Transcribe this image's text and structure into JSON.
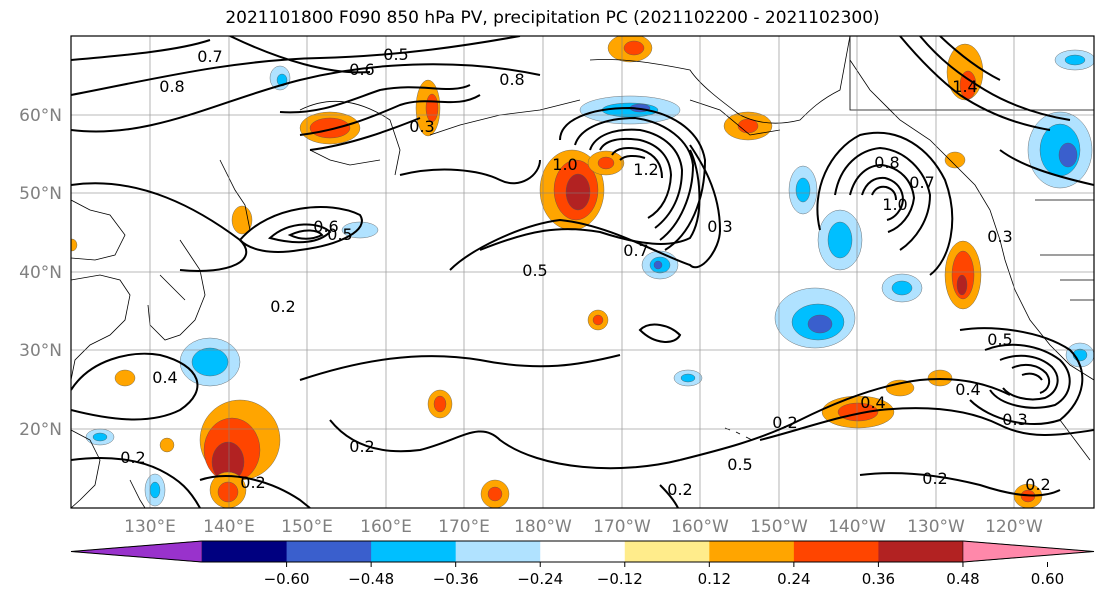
{
  "title": "2021101800 F090 850 hPa PV, precipitation PC (2021102200 - 2021102300)",
  "map": {
    "lat_labels": [
      "60°N",
      "50°N",
      "40°N",
      "30°N",
      "20°N"
    ],
    "lon_labels": [
      "130°E",
      "140°E",
      "150°E",
      "160°E",
      "170°E",
      "180°W",
      "170°W",
      "160°W",
      "150°W",
      "140°W",
      "130°W",
      "120°W"
    ],
    "contour_labels": [
      "0.7",
      "0.8",
      "0.6",
      "0.5",
      "0.8",
      "0.3",
      "0.6",
      "0.5",
      "1.0",
      "1.2",
      "0.3",
      "0.7",
      "0.5",
      "0.8",
      "1.0",
      "0.7",
      "0.3",
      "0.2",
      "0.4",
      "0.2",
      "0.2",
      "0.2",
      "0.2",
      "0.4",
      "0.5",
      "0.4",
      "0.3",
      "0.5",
      "0.2",
      "0.2",
      "0.2",
      "1.4"
    ],
    "land_color": "#000000",
    "grid_color": "#808080"
  },
  "colorbar": {
    "tick_labels": [
      "−0.60",
      "−0.48",
      "−0.36",
      "−0.24",
      "−0.12",
      "0.12",
      "0.24",
      "0.36",
      "0.48",
      "0.60"
    ],
    "colors": [
      "#9932cc",
      "#000080",
      "#3a5fcd",
      "#00bfff",
      "#b0e2ff",
      "#ffffff",
      "#ffec8b",
      "#ffa500",
      "#ff4500",
      "#b22222",
      "#ff88aa"
    ]
  }
}
